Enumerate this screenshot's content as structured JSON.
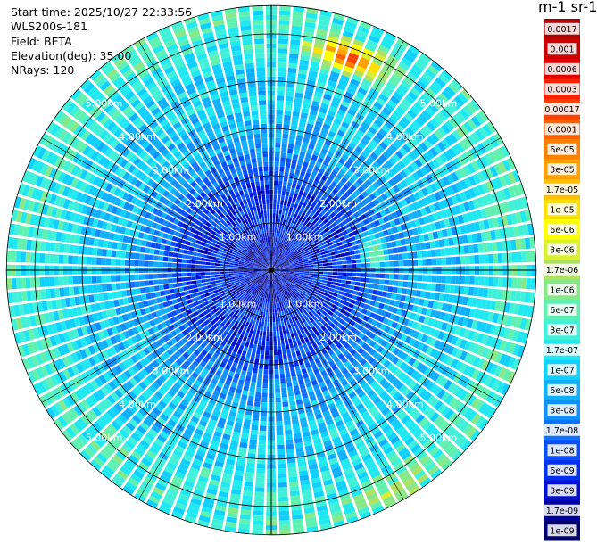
{
  "header": {
    "start_time": "Start time: 2025/10/27 22:33:56",
    "instrument": "WLS200s-181",
    "field": "Field: BETA",
    "elevation": "Elevation(deg): 35.00",
    "nrays": "NRays: 120"
  },
  "colorbar": {
    "units_label": "m-1 sr-1",
    "ticks": [
      "0.0017",
      "0.001",
      "0.0006",
      "0.0003",
      "0.00017",
      "0.0001",
      "6e-05",
      "3e-05",
      "1.7e-05",
      "1e-05",
      "6e-06",
      "3e-06",
      "1.7e-06",
      "1e-06",
      "6e-07",
      "3e-07",
      "1.7e-07",
      "1e-07",
      "6e-08",
      "3e-08",
      "1.7e-08",
      "1e-08",
      "6e-09",
      "3e-09",
      "1.7e-09",
      "1e-09"
    ],
    "colors": [
      "#b00000",
      "#cc0000",
      "#e00000",
      "#ff2000",
      "#ff4000",
      "#ff6000",
      "#ff8000",
      "#ffa000",
      "#ffc000",
      "#ffe000",
      "#ffff00",
      "#d8f030",
      "#b0e060",
      "#88e888",
      "#60f0b0",
      "#40f0d8",
      "#20e8f0",
      "#10d0ff",
      "#10b0ff",
      "#1090ff",
      "#1070ff",
      "#0850ff",
      "#0030f0",
      "#0010d0",
      "#0000a0",
      "#000070"
    ]
  },
  "range_rings": {
    "labels": [
      "1.00km",
      "2.00km",
      "3.00km",
      "4.00km",
      "5.00km"
    ],
    "values_km": [
      1,
      2,
      3,
      4,
      5
    ]
  },
  "chart_data": {
    "type": "heatmap",
    "projection": "polar PPI",
    "field": "BETA",
    "elevation_deg": 35.0,
    "nrays": 120,
    "range_max_km": 5.6,
    "value_scale": "log",
    "value_range": [
      1e-09,
      0.0017
    ],
    "radial_profile_km": [
      0.0,
      0.5,
      1.0,
      1.5,
      2.0,
      2.5,
      3.0,
      3.5,
      4.0,
      4.5,
      5.0,
      5.5
    ],
    "radial_profile_beta": [
      3e-09,
      3e-09,
      6e-09,
      6e-09,
      1e-08,
      3e-08,
      6e-08,
      1e-07,
      1e-07,
      1.7e-07,
      3e-07,
      3e-07
    ],
    "features": [
      {
        "description_azimuth_deg": 20,
        "range_km": 4.8,
        "beta": 0.0003
      },
      {
        "description_azimuth_deg": 80,
        "range_km": 2.2,
        "beta": 1.7e-06
      },
      {
        "description_azimuth_deg": 150,
        "range_km": 5.3,
        "beta": 1.7e-06
      }
    ]
  }
}
